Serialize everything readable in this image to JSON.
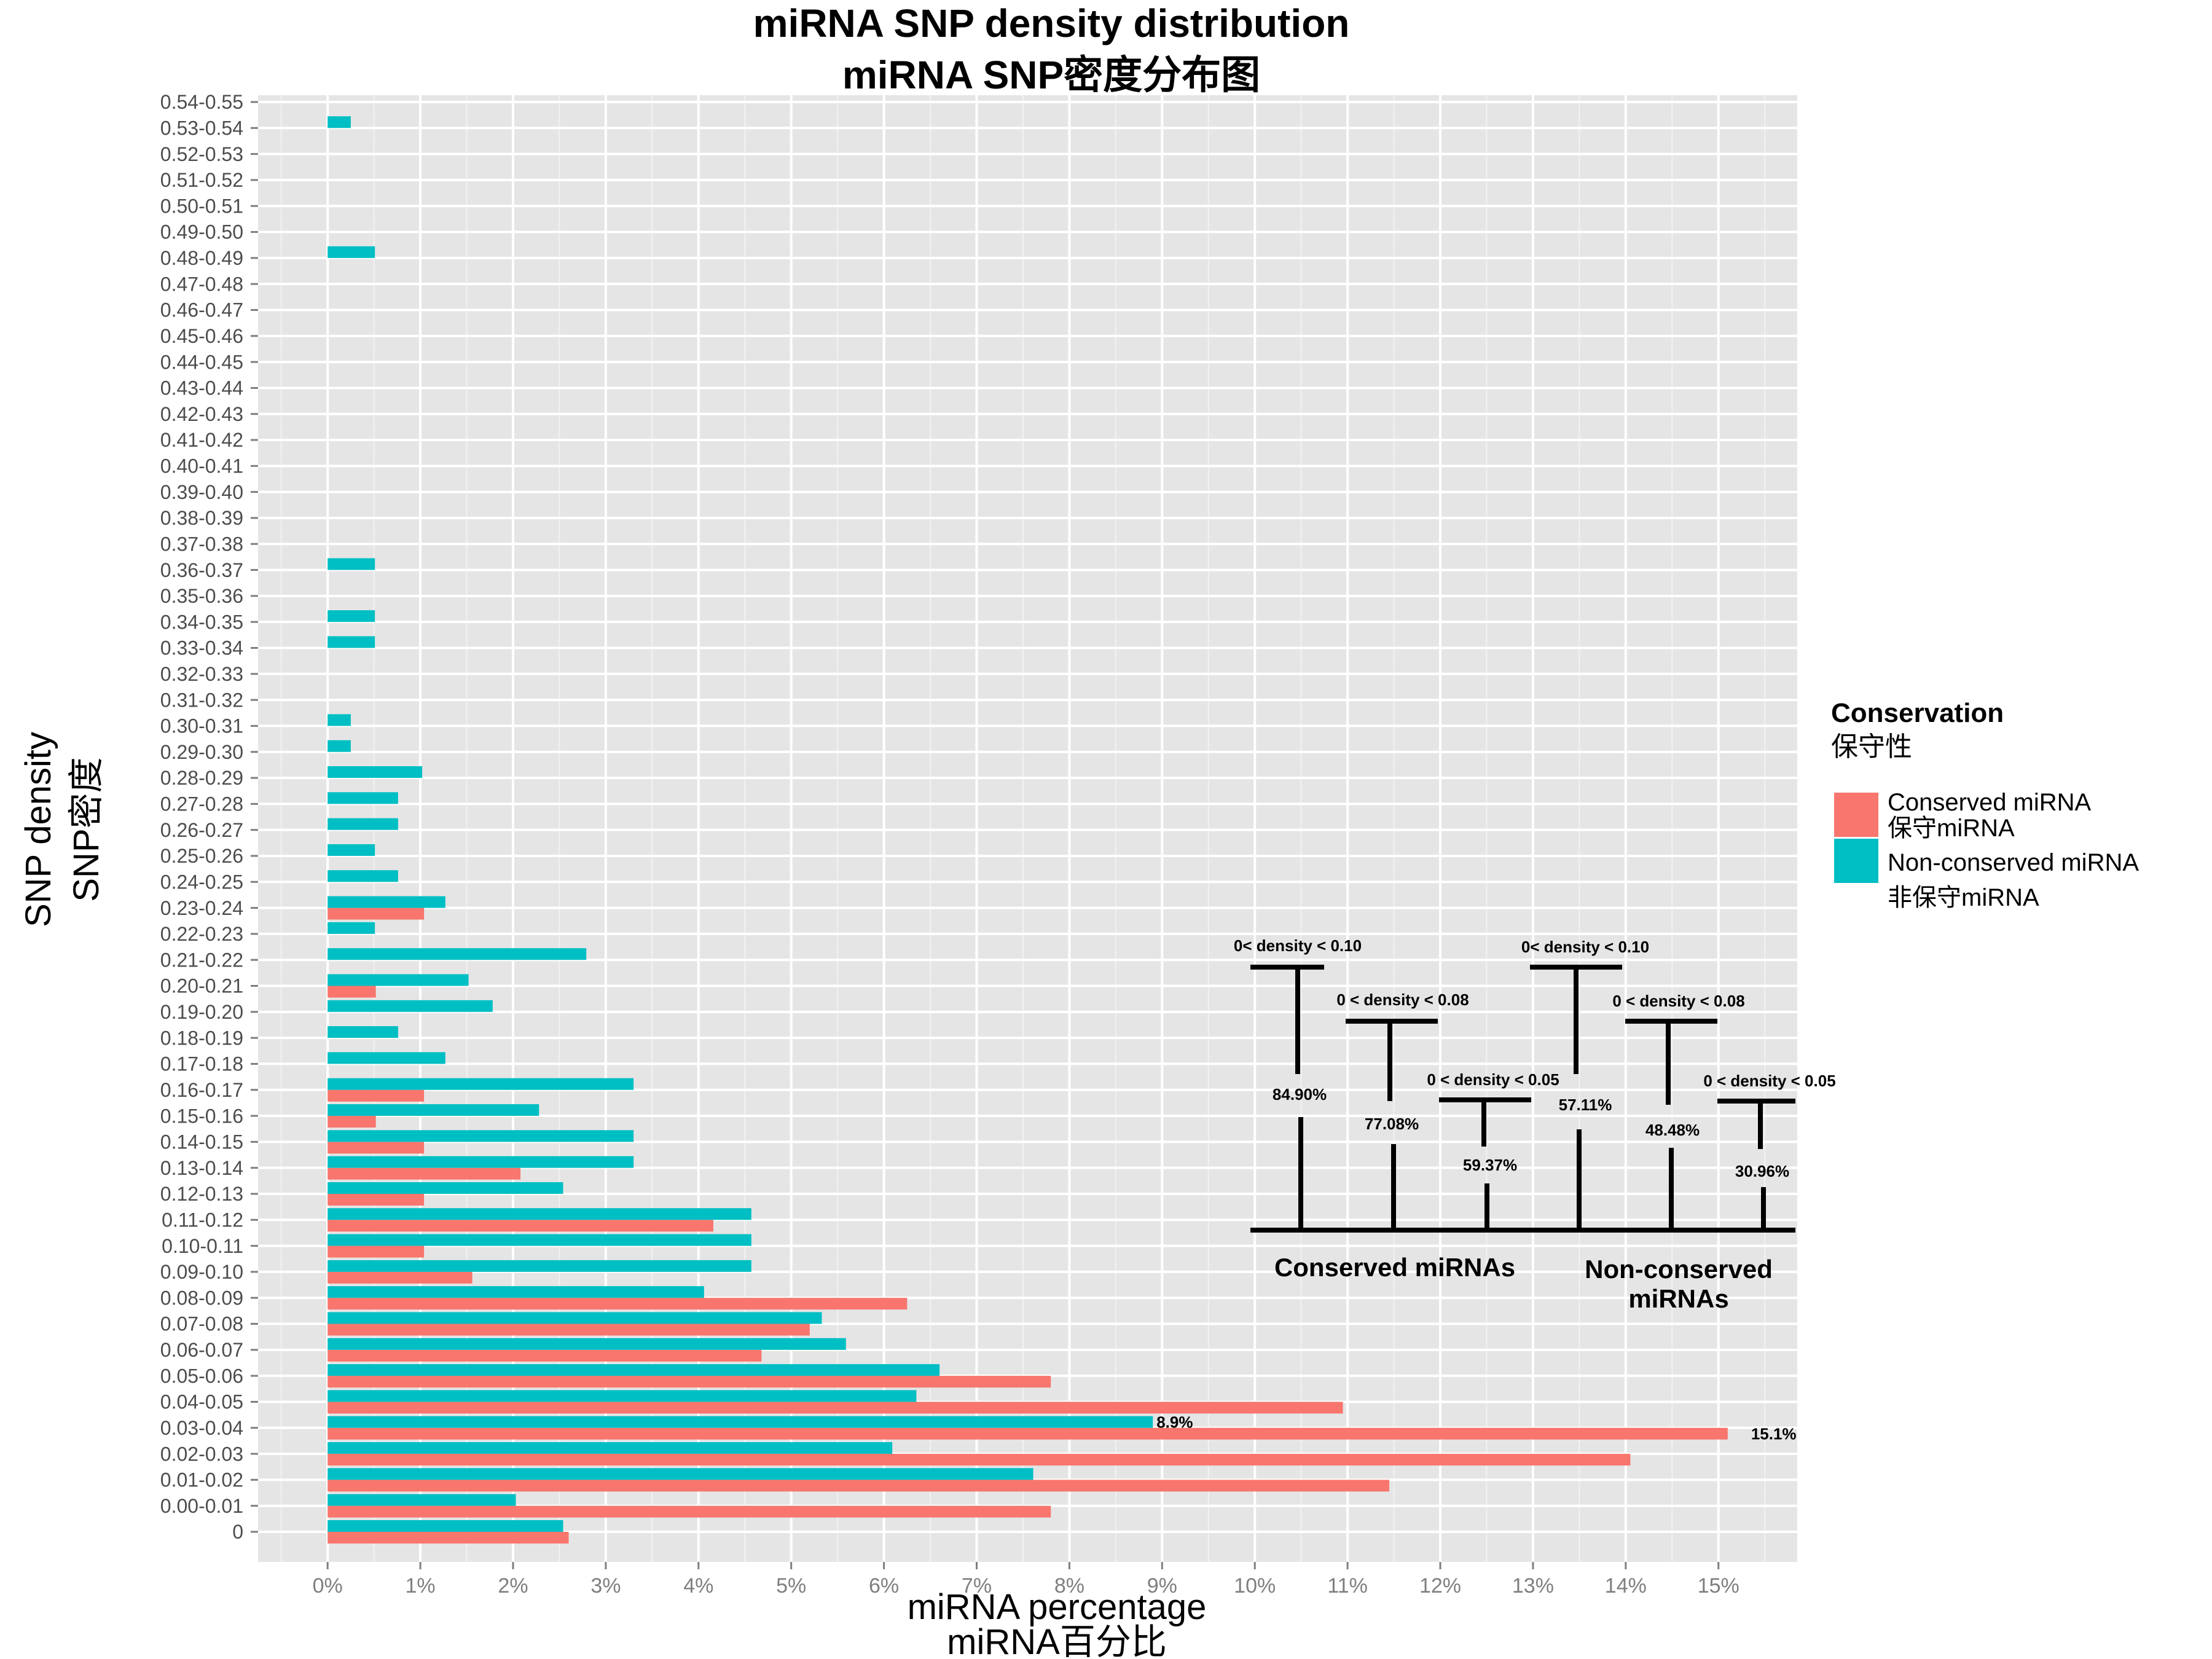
{
  "chart_data": {
    "type": "bar",
    "orientation": "horizontal",
    "title": "miRNA SNP density distribution",
    "subtitle": "miRNA SNP密度分布图",
    "xlabel": "miRNA percentage",
    "xlabel_sub": "miRNA百分比",
    "ylabel": "SNP density",
    "ylabel_sub": "SNP密度",
    "xlim": [
      -0.75,
      15.85
    ],
    "x_ticks": [
      0,
      1,
      2,
      3,
      4,
      5,
      6,
      7,
      8,
      9,
      10,
      11,
      12,
      13,
      14,
      15
    ],
    "x_tick_labels": [
      "0%",
      "1%",
      "2%",
      "3%",
      "4%",
      "5%",
      "6%",
      "7%",
      "8%",
      "9%",
      "10%",
      "11%",
      "12%",
      "13%",
      "14%",
      "15%"
    ],
    "grid": true,
    "categories": [
      "0",
      "0.00-0.01",
      "0.01-0.02",
      "0.02-0.03",
      "0.03-0.04",
      "0.04-0.05",
      "0.05-0.06",
      "0.06-0.07",
      "0.07-0.08",
      "0.08-0.09",
      "0.09-0.10",
      "0.10-0.11",
      "0.11-0.12",
      "0.12-0.13",
      "0.13-0.14",
      "0.14-0.15",
      "0.15-0.16",
      "0.16-0.17",
      "0.17-0.18",
      "0.18-0.19",
      "0.19-0.20",
      "0.20-0.21",
      "0.21-0.22",
      "0.22-0.23",
      "0.23-0.24",
      "0.24-0.25",
      "0.25-0.26",
      "0.26-0.27",
      "0.27-0.28",
      "0.28-0.29",
      "0.29-0.30",
      "0.30-0.31",
      "0.31-0.32",
      "0.32-0.33",
      "0.33-0.34",
      "0.34-0.35",
      "0.35-0.36",
      "0.36-0.37",
      "0.37-0.38",
      "0.38-0.39",
      "0.39-0.40",
      "0.40-0.41",
      "0.41-0.42",
      "0.42-0.43",
      "0.43-0.44",
      "0.44-0.45",
      "0.45-0.46",
      "0.46-0.47",
      "0.47-0.48",
      "0.48-0.49",
      "0.49-0.50",
      "0.50-0.51",
      "0.51-0.52",
      "0.52-0.53",
      "0.53-0.54",
      "0.54-0.55"
    ],
    "series": [
      {
        "name": "Conserved miRNA",
        "name_sub": "保守miRNA",
        "color": "#F8766D",
        "values": [
          2.6,
          7.8,
          11.45,
          14.05,
          15.1,
          10.95,
          7.8,
          4.68,
          5.2,
          6.25,
          1.56,
          1.04,
          4.16,
          1.04,
          2.08,
          1.04,
          0.52,
          1.04,
          0,
          0,
          0,
          0.52,
          0,
          0,
          1.04,
          0,
          0,
          0,
          0,
          0,
          0,
          0,
          0,
          0,
          0,
          0,
          0,
          0,
          0,
          0,
          0,
          0,
          0,
          0,
          0,
          0,
          0,
          0,
          0,
          0,
          0,
          0,
          0,
          0,
          0,
          0
        ]
      },
      {
        "name": "Non-conserved miRNA",
        "name_sub": "非保守miRNA",
        "color": "#00BFC4",
        "values": [
          2.54,
          2.03,
          7.61,
          6.09,
          8.9,
          6.35,
          6.6,
          5.59,
          5.33,
          4.06,
          4.57,
          4.57,
          4.57,
          2.54,
          3.3,
          3.3,
          2.28,
          3.3,
          1.27,
          0.76,
          1.78,
          1.52,
          2.79,
          0.51,
          1.27,
          0.76,
          0.51,
          0.76,
          0.76,
          1.02,
          0.25,
          0.25,
          0,
          0,
          0.51,
          0.51,
          0,
          0.51,
          0,
          0,
          0,
          0,
          0,
          0,
          0,
          0,
          0,
          0,
          0,
          0.51,
          0,
          0,
          0,
          0,
          0.25,
          0
        ]
      }
    ],
    "data_labels": [
      {
        "text": "8.9%",
        "category": "0.03-0.04",
        "series": 1
      },
      {
        "text": "15.1%",
        "category": "0.03-0.04",
        "series": 0
      }
    ],
    "legend": {
      "title": "Conservation",
      "title_sub": "保守性",
      "placement": "right"
    },
    "annotation": {
      "conserved_label": "Conserved miRNAs",
      "nonconserved_label_line1": "Non-conserved",
      "nonconserved_label_line2": "miRNAs",
      "groups": [
        {
          "id": "c10",
          "range": "0< density < 0.10",
          "pct": "84.90%"
        },
        {
          "id": "c08",
          "range": "0 < density < 0.08",
          "pct": "77.08%"
        },
        {
          "id": "c05",
          "range": "0 < density < 0.05",
          "pct": "59.37%"
        },
        {
          "id": "n10",
          "range": "0< density < 0.10",
          "pct": "57.11%"
        },
        {
          "id": "n08",
          "range": "0 < density < 0.08",
          "pct": "48.48%"
        },
        {
          "id": "n05",
          "range": "0 < density < 0.05",
          "pct": "30.96%"
        }
      ]
    }
  }
}
